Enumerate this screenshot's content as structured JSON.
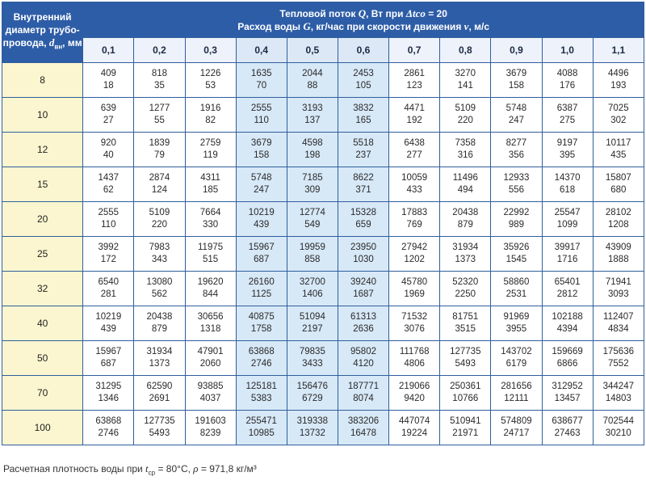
{
  "header": {
    "corner_line1": "Внутренний",
    "corner_line2": "диаметр трубо-",
    "corner_line3_prefix": "провода, ",
    "corner_sym": "d",
    "corner_sub": "вн",
    "corner_line3_suffix": ", мм",
    "title_prefix": "Тепловой поток ",
    "title_sym1": "Q",
    "title_mid": ", Вт при ",
    "title_sym2": "Δtco",
    "title_suffix": " = 20",
    "subtitle_prefix": "Расход воды ",
    "subtitle_sym1": "G",
    "subtitle_mid": ", кг/час при скорости движения ",
    "subtitle_sym2": "v",
    "subtitle_suffix": ", м/с"
  },
  "speeds": [
    "0,1",
    "0,2",
    "0,3",
    "0,4",
    "0,5",
    "0,6",
    "0,7",
    "0,8",
    "0,9",
    "1,0",
    "1,1"
  ],
  "highlight_columns": [
    3,
    4,
    5
  ],
  "rows": [
    {
      "d": "8",
      "q": [
        "409",
        "818",
        "1226",
        "1635",
        "2044",
        "2453",
        "2861",
        "3270",
        "3679",
        "4088",
        "4496"
      ],
      "g": [
        "18",
        "35",
        "53",
        "70",
        "88",
        "105",
        "123",
        "141",
        "158",
        "176",
        "193"
      ]
    },
    {
      "d": "10",
      "q": [
        "639",
        "1277",
        "1916",
        "2555",
        "3193",
        "3832",
        "4471",
        "5109",
        "5748",
        "6387",
        "7025"
      ],
      "g": [
        "27",
        "55",
        "82",
        "110",
        "137",
        "165",
        "192",
        "220",
        "247",
        "275",
        "302"
      ]
    },
    {
      "d": "12",
      "q": [
        "920",
        "1839",
        "2759",
        "3679",
        "4598",
        "5518",
        "6438",
        "7358",
        "8277",
        "9197",
        "10117"
      ],
      "g": [
        "40",
        "79",
        "119",
        "158",
        "198",
        "237",
        "277",
        "316",
        "356",
        "395",
        "435"
      ]
    },
    {
      "d": "15",
      "q": [
        "1437",
        "2874",
        "4311",
        "5748",
        "7185",
        "8622",
        "10059",
        "11496",
        "12933",
        "14370",
        "15807"
      ],
      "g": [
        "62",
        "124",
        "185",
        "247",
        "309",
        "371",
        "433",
        "494",
        "556",
        "618",
        "680"
      ]
    },
    {
      "d": "20",
      "q": [
        "2555",
        "5109",
        "7664",
        "10219",
        "12774",
        "15328",
        "17883",
        "20438",
        "22992",
        "25547",
        "28102"
      ],
      "g": [
        "110",
        "220",
        "330",
        "439",
        "549",
        "659",
        "769",
        "879",
        "989",
        "1099",
        "1208"
      ]
    },
    {
      "d": "25",
      "q": [
        "3992",
        "7983",
        "11975",
        "15967",
        "19959",
        "23950",
        "27942",
        "31934",
        "35926",
        "39917",
        "43909"
      ],
      "g": [
        "172",
        "343",
        "515",
        "687",
        "858",
        "1030",
        "1202",
        "1373",
        "1545",
        "1716",
        "1888"
      ]
    },
    {
      "d": "32",
      "q": [
        "6540",
        "13080",
        "19620",
        "26160",
        "32700",
        "39240",
        "45780",
        "52320",
        "58860",
        "65401",
        "71941"
      ],
      "g": [
        "281",
        "562",
        "844",
        "1125",
        "1406",
        "1687",
        "1969",
        "2250",
        "2531",
        "2812",
        "3093"
      ]
    },
    {
      "d": "40",
      "q": [
        "10219",
        "20438",
        "30656",
        "40875",
        "51094",
        "61313",
        "71532",
        "81751",
        "91969",
        "102188",
        "112407"
      ],
      "g": [
        "439",
        "879",
        "1318",
        "1758",
        "2197",
        "2636",
        "3076",
        "3515",
        "3955",
        "4394",
        "4834"
      ]
    },
    {
      "d": "50",
      "q": [
        "15967",
        "31934",
        "47901",
        "63868",
        "79835",
        "95802",
        "111768",
        "127735",
        "143702",
        "159669",
        "175636"
      ],
      "g": [
        "687",
        "1373",
        "2060",
        "2746",
        "3433",
        "4120",
        "4806",
        "5493",
        "6179",
        "6866",
        "7552"
      ]
    },
    {
      "d": "70",
      "q": [
        "31295",
        "62590",
        "93885",
        "125181",
        "156476",
        "187771",
        "219066",
        "250361",
        "281656",
        "312952",
        "344247"
      ],
      "g": [
        "1346",
        "2691",
        "4037",
        "5383",
        "6729",
        "8074",
        "9420",
        "10766",
        "12111",
        "13457",
        "14803"
      ]
    },
    {
      "d": "100",
      "q": [
        "63868",
        "127735",
        "191603",
        "255471",
        "319338",
        "383206",
        "447074",
        "510941",
        "574809",
        "638677",
        "702544"
      ],
      "g": [
        "2746",
        "5493",
        "8239",
        "10985",
        "13732",
        "16478",
        "19224",
        "21971",
        "24717",
        "27463",
        "30210"
      ]
    }
  ],
  "footnote": {
    "prefix": "Расчетная плотность воды при ",
    "sym1": "t",
    "sub1": "ср",
    "mid": " = 80°С, ",
    "sym2": "ρ",
    "suffix": " = 971,8 кг/м³"
  }
}
